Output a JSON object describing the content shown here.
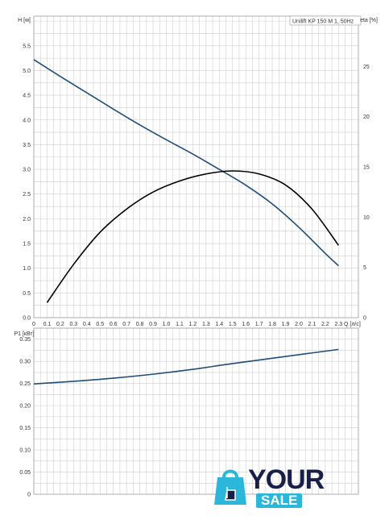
{
  "chart_data": [
    {
      "type": "line",
      "title": "Unilift KP 150 M 1, 50Hz",
      "xlabel": "Q [л/с]",
      "ylabel": "H [м]",
      "y2label": "eta [%]",
      "xlim": [
        0,
        2.45
      ],
      "ylim": [
        0,
        6.1
      ],
      "y2lim": [
        0,
        30
      ],
      "x_ticks": [
        "0",
        "0.1",
        "0.2",
        "0.3",
        "0.4",
        "0.5",
        "0.6",
        "0.7",
        "0.8",
        "0.9",
        "1.0",
        "1.1",
        "1.2",
        "1.3",
        "1.4",
        "1.5",
        "1.6",
        "1.7",
        "1.8",
        "1.9",
        "2.0",
        "2.1",
        "2.2",
        "2.3"
      ],
      "x_tick_values": [
        0,
        0.1,
        0.2,
        0.3,
        0.4,
        0.5,
        0.6,
        0.7,
        0.8,
        0.9,
        1.0,
        1.1,
        1.2,
        1.3,
        1.4,
        1.5,
        1.6,
        1.7,
        1.8,
        1.9,
        2.0,
        2.1,
        2.2,
        2.3
      ],
      "y_ticks": [
        "0.0",
        "0.5",
        "1.0",
        "1.5",
        "2.0",
        "2.5",
        "3.0",
        "3.5",
        "4.0",
        "4.5",
        "5.0",
        "5.5"
      ],
      "y_tick_values": [
        0,
        0.5,
        1.0,
        1.5,
        2.0,
        2.5,
        3.0,
        3.5,
        4.0,
        4.5,
        5.0,
        5.5
      ],
      "y2_ticks": [
        "0",
        "5",
        "10",
        "15",
        "20",
        "25"
      ],
      "y2_tick_values": [
        0,
        5,
        10,
        15,
        20,
        25
      ],
      "grid": true,
      "series": [
        {
          "axis": "left",
          "color": "#1f4e79",
          "x": [
            0,
            0.2,
            0.4,
            0.6,
            0.8,
            1.0,
            1.2,
            1.4,
            1.6,
            1.8,
            2.0,
            2.2,
            2.3
          ],
          "y": [
            5.22,
            4.88,
            4.55,
            4.22,
            3.9,
            3.6,
            3.31,
            3.0,
            2.68,
            2.3,
            1.83,
            1.3,
            1.05
          ]
        },
        {
          "axis": "right",
          "color": "#000000",
          "x": [
            0.1,
            0.3,
            0.5,
            0.7,
            0.9,
            1.1,
            1.3,
            1.5,
            1.7,
            1.9,
            2.1,
            2.3
          ],
          "y": [
            1.5,
            5.3,
            8.5,
            10.8,
            12.5,
            13.6,
            14.3,
            14.6,
            14.3,
            13.2,
            10.8,
            7.2
          ]
        }
      ]
    },
    {
      "type": "line",
      "title": "",
      "xlabel": "",
      "ylabel": "P1 [кВт]",
      "xlim": [
        0,
        2.45
      ],
      "ylim": [
        0,
        0.375
      ],
      "y_ticks": [
        "0",
        "0.05",
        "0.10",
        "0.15",
        "0.20",
        "0.25",
        "0.30",
        "0.35"
      ],
      "y_tick_values": [
        0,
        0.05,
        0.1,
        0.15,
        0.2,
        0.25,
        0.3,
        0.35
      ],
      "grid": true,
      "series": [
        {
          "axis": "left",
          "color": "#1f4e79",
          "x": [
            0,
            0.3,
            0.6,
            0.9,
            1.2,
            1.5,
            1.8,
            2.1,
            2.3
          ],
          "y": [
            0.249,
            0.255,
            0.262,
            0.271,
            0.282,
            0.295,
            0.307,
            0.319,
            0.327
          ]
        }
      ]
    }
  ],
  "logo": {
    "line1": "YOUR",
    "line2": "SALE"
  },
  "colors": {
    "logo_accent": "#2ab7d9",
    "logo_dark": "#18204a"
  }
}
